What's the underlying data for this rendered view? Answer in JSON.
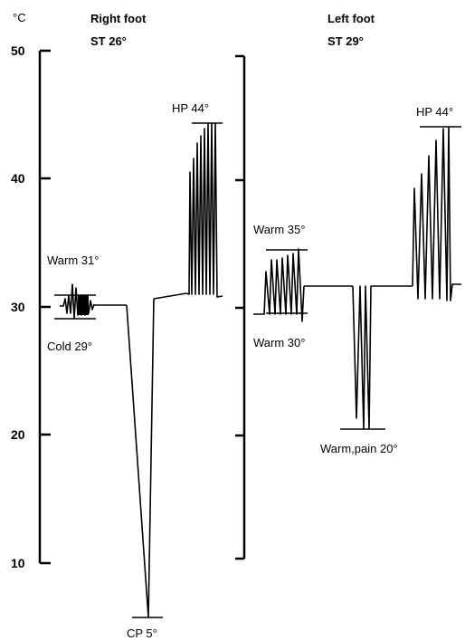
{
  "chart_data": {
    "type": "line",
    "y_unit": "°C",
    "y_ticks": [
      "10",
      "20",
      "30",
      "40",
      "50"
    ],
    "ylim": [
      5,
      50
    ],
    "panels": [
      {
        "title": "Right foot",
        "subtitle": "ST 26°",
        "baseline": 30.1,
        "annotations": [
          {
            "label": "Warm 31°",
            "value": 31
          },
          {
            "label": "Cold 29°",
            "value": 29
          },
          {
            "label": "CP 5°",
            "value": 5
          },
          {
            "label": "HP 44°",
            "value": 44
          }
        ]
      },
      {
        "title": "Left foot",
        "subtitle": "ST 29°",
        "baseline": 31.8,
        "annotations": [
          {
            "label": "Warm 35°",
            "value": 34.5
          },
          {
            "label": "Warm 30°",
            "value": 29.5
          },
          {
            "label": "Warm,pain 20°",
            "value": 20.3
          },
          {
            "label": "HP 44°",
            "value": 44
          }
        ]
      }
    ]
  }
}
